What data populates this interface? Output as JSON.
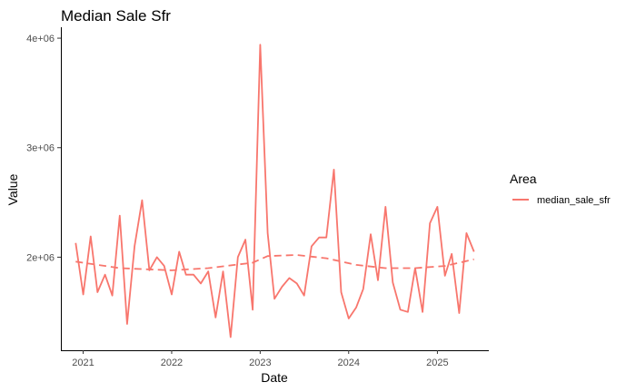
{
  "chart_data": {
    "type": "line",
    "title": "Median Sale Sfr",
    "xlabel": "Date",
    "ylabel": "Value",
    "x_ticks": [
      "2021",
      "2022",
      "2023",
      "2024",
      "2025"
    ],
    "y_ticks": [
      {
        "value": 2000000,
        "label": "2e+06"
      },
      {
        "value": 3000000,
        "label": "3e+06"
      },
      {
        "value": 4000000,
        "label": "4e+06"
      }
    ],
    "xlim": [
      "2020-10-01",
      "2025-08-01"
    ],
    "ylim": [
      1150000,
      4100000
    ],
    "grid": false,
    "legend": {
      "title": "Area",
      "position": "right"
    },
    "series": [
      {
        "name": "median_sale_sfr",
        "color": "#F8766D",
        "style": "solid",
        "x": [
          "2020-12-01",
          "2021-01-01",
          "2021-02-01",
          "2021-03-01",
          "2021-04-01",
          "2021-05-01",
          "2021-06-01",
          "2021-07-01",
          "2021-08-01",
          "2021-09-01",
          "2021-10-01",
          "2021-11-01",
          "2021-12-01",
          "2022-01-01",
          "2022-02-01",
          "2022-03-01",
          "2022-04-01",
          "2022-05-01",
          "2022-06-01",
          "2022-07-01",
          "2022-08-01",
          "2022-09-01",
          "2022-10-01",
          "2022-11-01",
          "2022-12-01",
          "2023-01-01",
          "2023-02-01",
          "2023-03-01",
          "2023-04-01",
          "2023-05-01",
          "2023-06-01",
          "2023-07-01",
          "2023-08-01",
          "2023-09-01",
          "2023-10-01",
          "2023-11-01",
          "2023-12-01",
          "2024-01-01",
          "2024-02-01",
          "2024-03-01",
          "2024-04-01",
          "2024-05-01",
          "2024-06-01",
          "2024-07-01",
          "2024-08-01",
          "2024-09-01",
          "2024-10-01",
          "2024-11-01",
          "2024-12-01",
          "2025-01-01",
          "2025-02-01",
          "2025-03-01",
          "2025-04-01",
          "2025-05-01",
          "2025-06-01"
        ],
        "values": [
          2130000,
          1660000,
          2190000,
          1680000,
          1840000,
          1650000,
          2380000,
          1390000,
          2100000,
          2520000,
          1880000,
          2000000,
          1920000,
          1660000,
          2050000,
          1840000,
          1840000,
          1760000,
          1870000,
          1450000,
          1870000,
          1270000,
          2000000,
          2160000,
          1520000,
          3940000,
          2220000,
          1620000,
          1730000,
          1810000,
          1760000,
          1650000,
          2100000,
          2180000,
          2180000,
          2800000,
          1680000,
          1440000,
          1540000,
          1710000,
          2210000,
          1790000,
          2460000,
          1770000,
          1520000,
          1500000,
          1900000,
          1500000,
          2310000,
          2460000,
          1830000,
          2030000,
          1490000,
          2220000,
          2050000
        ]
      },
      {
        "name": "",
        "color": "#F8766D",
        "style": "dashed",
        "x": [
          "2020-12-01",
          "2021-06-01",
          "2022-01-01",
          "2022-06-01",
          "2022-12-01",
          "2023-02-01",
          "2023-06-01",
          "2023-10-01",
          "2024-02-01",
          "2024-06-01",
          "2024-10-01",
          "2025-02-01",
          "2025-06-01"
        ],
        "values": [
          1960000,
          1900000,
          1880000,
          1900000,
          1950000,
          2010000,
          2020000,
          1990000,
          1930000,
          1900000,
          1900000,
          1920000,
          1980000
        ]
      }
    ]
  }
}
